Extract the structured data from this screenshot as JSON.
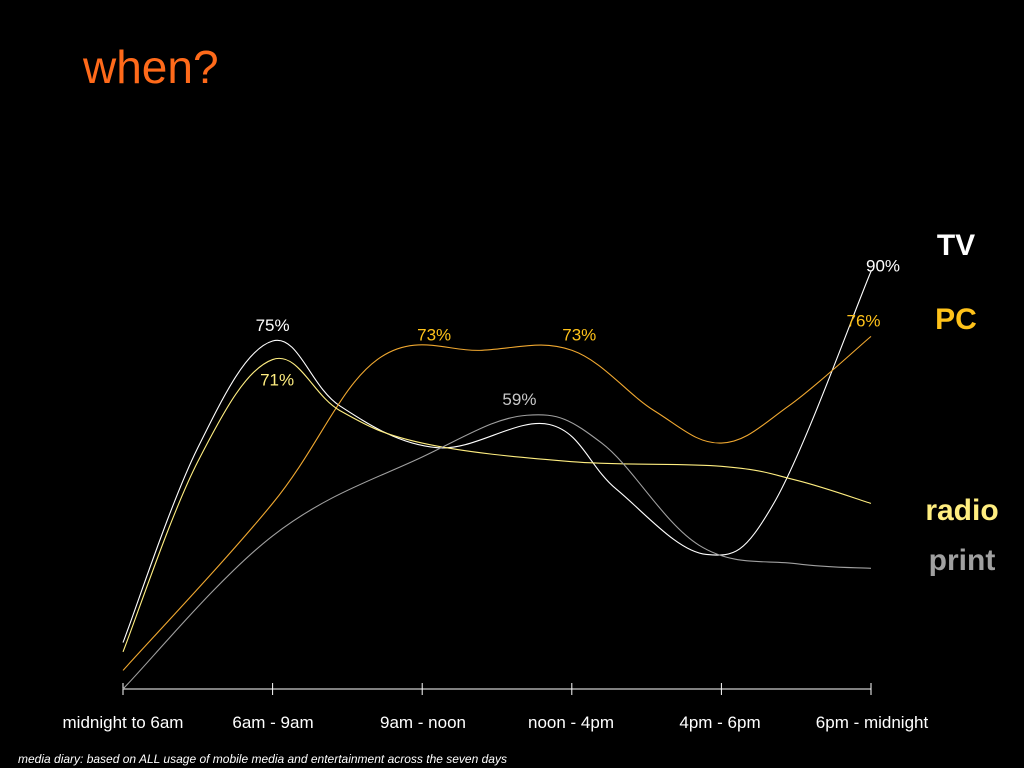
{
  "title": "when?",
  "footnote": "media diary: based on ALL usage of mobile media and entertainment across the seven days",
  "chart_data": {
    "type": "line",
    "categories": [
      "midnight to 6am",
      "6am - 9am",
      "9am - noon",
      "noon - 4pm",
      "4pm - 6pm",
      "6pm - midnight"
    ],
    "x": [
      0,
      1,
      2,
      3,
      4,
      5
    ],
    "ylim": [
      0,
      100
    ],
    "grid": false,
    "legend": "right, labels at line ends",
    "series": [
      {
        "name": "TV",
        "color": "#ffffff",
        "points": [
          [
            0,
            10
          ],
          [
            0.5,
            52
          ],
          [
            1,
            75
          ],
          [
            1.45,
            61
          ],
          [
            2.1,
            52
          ],
          [
            2.85,
            57
          ],
          [
            3.3,
            43
          ],
          [
            3.9,
            29
          ],
          [
            4.35,
            40
          ],
          [
            5,
            90
          ]
        ],
        "labels": [
          {
            "x": 1,
            "y": 75,
            "text": "75%"
          },
          {
            "x": 5,
            "y": 90,
            "text": "90%"
          }
        ]
      },
      {
        "name": "PC",
        "color": "#f0a830",
        "points": [
          [
            0,
            4
          ],
          [
            1,
            40
          ],
          [
            1.7,
            71
          ],
          [
            2.4,
            73
          ],
          [
            3.0,
            73
          ],
          [
            3.55,
            60
          ],
          [
            4.0,
            53
          ],
          [
            4.45,
            61
          ],
          [
            5,
            76
          ]
        ],
        "labels": [
          {
            "x": 2.08,
            "y": 73,
            "text": "73%"
          },
          {
            "x": 3.05,
            "y": 73,
            "text": "73%"
          },
          {
            "x": 4.95,
            "y": 76,
            "text": "76%"
          }
        ]
      },
      {
        "name": "radio",
        "color": "#ffee80",
        "points": [
          [
            0,
            8
          ],
          [
            0.5,
            49
          ],
          [
            1,
            71
          ],
          [
            1.45,
            60
          ],
          [
            2,
            53
          ],
          [
            3,
            49
          ],
          [
            4,
            48
          ],
          [
            4.5,
            45
          ],
          [
            5,
            40
          ]
        ],
        "labels": [
          {
            "x": 1.03,
            "y": 71,
            "text": "71%"
          }
        ]
      },
      {
        "name": "print",
        "color": "#a0a0a0",
        "points": [
          [
            0,
            0
          ],
          [
            1,
            33
          ],
          [
            2,
            50
          ],
          [
            2.7,
            59
          ],
          [
            3.2,
            53
          ],
          [
            3.85,
            31
          ],
          [
            4.5,
            27
          ],
          [
            5,
            26
          ]
        ],
        "labels": [
          {
            "x": 2.65,
            "y": 59,
            "text": "59%"
          }
        ]
      }
    ],
    "legend_entries": [
      {
        "text": "TV",
        "color": "#ffffff"
      },
      {
        "text": "PC",
        "color": "#ffc21a"
      },
      {
        "text": "radio",
        "color": "#ffee80"
      },
      {
        "text": "print",
        "color": "#a0a0a0"
      }
    ]
  }
}
